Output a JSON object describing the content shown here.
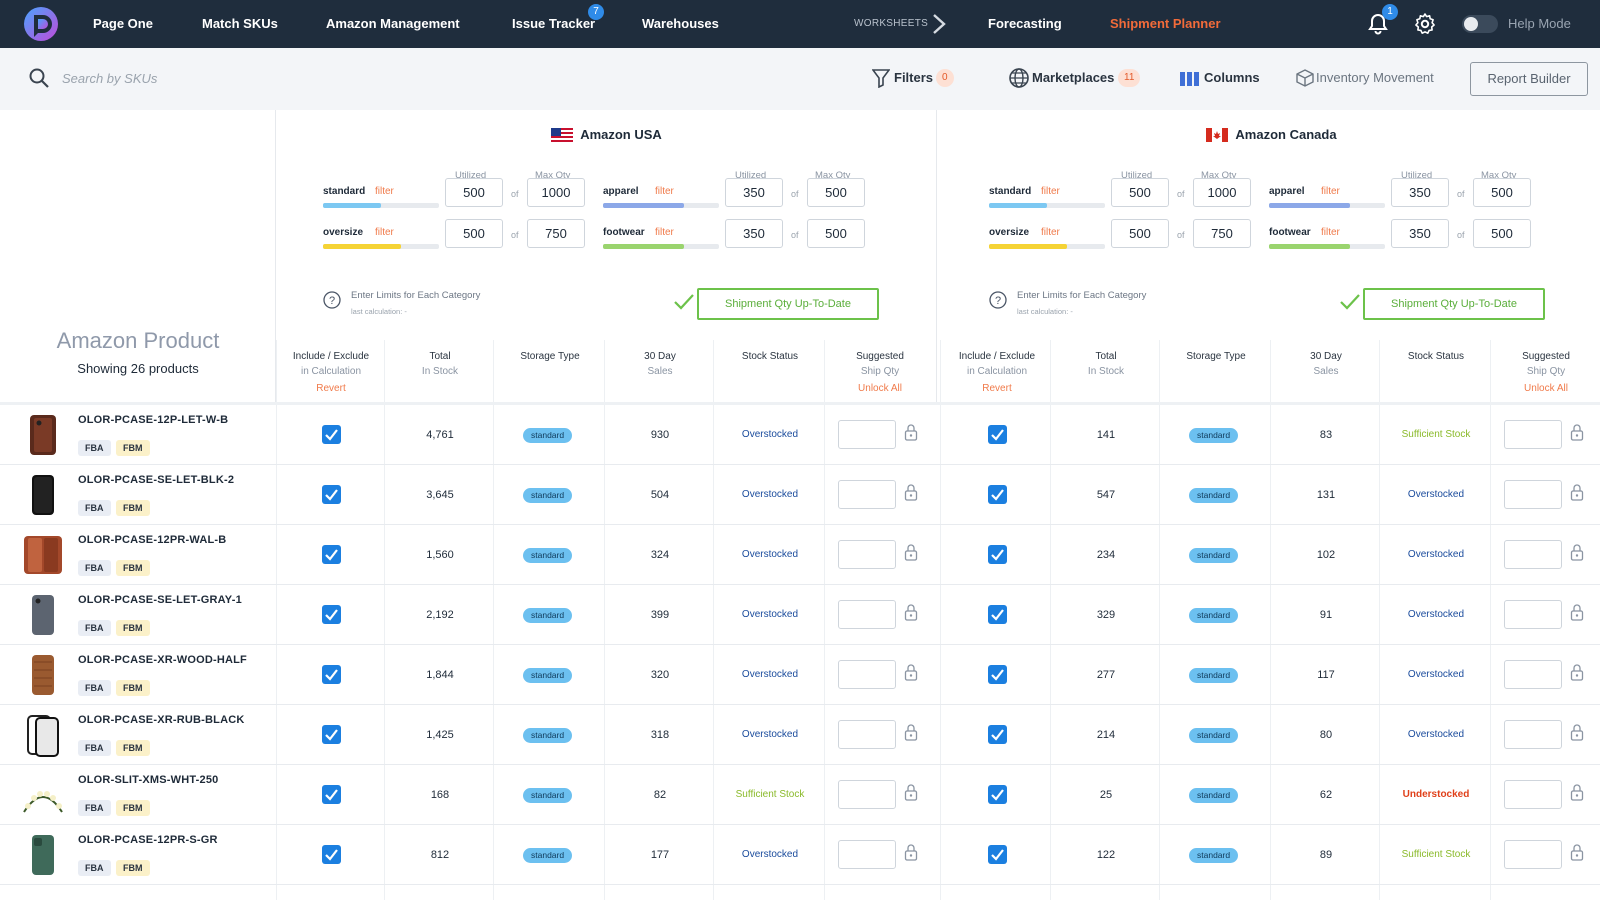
{
  "nav": {
    "items": [
      {
        "label": "Page One"
      },
      {
        "label": "Match SKUs"
      },
      {
        "label": "Amazon Management"
      },
      {
        "label": "Issue Tracker",
        "badge": "7"
      },
      {
        "label": "Warehouses"
      },
      {
        "label": "WORKSHEETS"
      },
      {
        "label": "Forecasting"
      },
      {
        "label": "Shipment Planner"
      }
    ],
    "notification_count": "1",
    "help_mode_label": "Help Mode",
    "accent_color": "#f26b3a"
  },
  "toolbar": {
    "search_placeholder": "Search by SKUs",
    "filters_label": "Filters",
    "filters_count": "0",
    "marketplaces_label": "Marketplaces",
    "marketplaces_count": "11",
    "columns_label": "Columns",
    "inventory_movement_label": "Inventory Movement",
    "report_builder_label": "Report Builder"
  },
  "left": {
    "title": "Amazon Product",
    "subtitle": "Showing 26 products"
  },
  "marketplaces": [
    {
      "name": "Amazon USA",
      "flag": "us-flag-icon",
      "utilized_header": "Utilized",
      "max_header": "Max Qty",
      "of_label": "of",
      "filter_label": "filter",
      "categories": [
        {
          "name": "standard",
          "utilized": "500",
          "max": "1000",
          "fill": 0.5,
          "color": "#7cc8f2"
        },
        {
          "name": "apparel",
          "utilized": "350",
          "max": "500",
          "fill": 0.7,
          "color": "#8ca8e8"
        },
        {
          "name": "oversize",
          "utilized": "500",
          "max": "750",
          "fill": 0.67,
          "color": "#f5d335"
        },
        {
          "name": "footwear",
          "utilized": "350",
          "max": "500",
          "fill": 0.7,
          "color": "#9ad46e"
        }
      ],
      "limits_text": "Enter Limits for Each Category",
      "last_calc": "last calculation: -",
      "uptodate_label": "Shipment Qty Up-To-Date"
    },
    {
      "name": "Amazon Canada",
      "flag": "ca-flag-icon",
      "utilized_header": "Utilized",
      "max_header": "Max Qty",
      "of_label": "of",
      "filter_label": "filter",
      "categories": [
        {
          "name": "standard",
          "utilized": "500",
          "max": "1000",
          "fill": 0.5,
          "color": "#7cc8f2"
        },
        {
          "name": "apparel",
          "utilized": "350",
          "max": "500",
          "fill": 0.7,
          "color": "#8ca8e8"
        },
        {
          "name": "oversize",
          "utilized": "500",
          "max": "750",
          "fill": 0.67,
          "color": "#f5d335"
        },
        {
          "name": "footwear",
          "utilized": "350",
          "max": "500",
          "fill": 0.7,
          "color": "#9ad46e"
        }
      ],
      "limits_text": "Enter Limits for Each Category",
      "last_calc": "last calculation: -",
      "uptodate_label": "Shipment Qty Up-To-Date"
    }
  ],
  "columns": {
    "include": {
      "l1": "Include / Exclude",
      "l2": "in Calculation",
      "l3": "Revert"
    },
    "total": {
      "l1": "Total",
      "l2": "In Stock"
    },
    "storage": {
      "l1": "Storage Type"
    },
    "sales": {
      "l1": "30 Day",
      "l2": "Sales"
    },
    "status": {
      "l1": "Stock Status"
    },
    "ship": {
      "l1": "Suggested",
      "l2": "Ship Qty",
      "l3": "Unlock All"
    }
  },
  "tags": {
    "fba": "FBA",
    "fbm": "FBM"
  },
  "storage_label": "standard",
  "rows": [
    {
      "sku": "OLOR-PCASE-12P-LET-W-B",
      "thumb": "phone-case-brown",
      "usa": {
        "total": "4,761",
        "sales": "930",
        "status": "Overstocked",
        "kind": "over"
      },
      "ca": {
        "total": "141",
        "sales": "83",
        "status": "Sufficient Stock",
        "kind": "suff"
      }
    },
    {
      "sku": "OLOR-PCASE-SE-LET-BLK-2",
      "thumb": "phone-case-black",
      "usa": {
        "total": "3,645",
        "sales": "504",
        "status": "Overstocked",
        "kind": "over"
      },
      "ca": {
        "total": "547",
        "sales": "131",
        "status": "Overstocked",
        "kind": "over"
      }
    },
    {
      "sku": "OLOR-PCASE-12PR-WAL-B",
      "thumb": "phone-case-wallet",
      "usa": {
        "total": "1,560",
        "sales": "324",
        "status": "Overstocked",
        "kind": "over"
      },
      "ca": {
        "total": "234",
        "sales": "102",
        "status": "Overstocked",
        "kind": "over"
      }
    },
    {
      "sku": "OLOR-PCASE-SE-LET-GRAY-1",
      "thumb": "phone-case-gray",
      "usa": {
        "total": "2,192",
        "sales": "399",
        "status": "Overstocked",
        "kind": "over"
      },
      "ca": {
        "total": "329",
        "sales": "91",
        "status": "Overstocked",
        "kind": "over"
      }
    },
    {
      "sku": "OLOR-PCASE-XR-WOOD-HALF",
      "thumb": "phone-case-wood",
      "usa": {
        "total": "1,844",
        "sales": "320",
        "status": "Overstocked",
        "kind": "over"
      },
      "ca": {
        "total": "277",
        "sales": "117",
        "status": "Overstocked",
        "kind": "over"
      }
    },
    {
      "sku": "OLOR-PCASE-XR-RUB-BLACK",
      "thumb": "phone-case-clear",
      "usa": {
        "total": "1,425",
        "sales": "318",
        "status": "Overstocked",
        "kind": "over"
      },
      "ca": {
        "total": "214",
        "sales": "80",
        "status": "Overstocked",
        "kind": "over"
      }
    },
    {
      "sku": "OLOR-SLIT-XMS-WHT-250",
      "thumb": "string-lights",
      "usa": {
        "total": "168",
        "sales": "82",
        "status": "Sufficient Stock",
        "kind": "suff"
      },
      "ca": {
        "total": "25",
        "sales": "62",
        "status": "Understocked",
        "kind": "under"
      }
    },
    {
      "sku": "OLOR-PCASE-12PR-S-GR",
      "thumb": "phone-case-green",
      "usa": {
        "total": "812",
        "sales": "177",
        "status": "Overstocked",
        "kind": "over"
      },
      "ca": {
        "total": "122",
        "sales": "89",
        "status": "Sufficient Stock",
        "kind": "suff"
      }
    }
  ]
}
